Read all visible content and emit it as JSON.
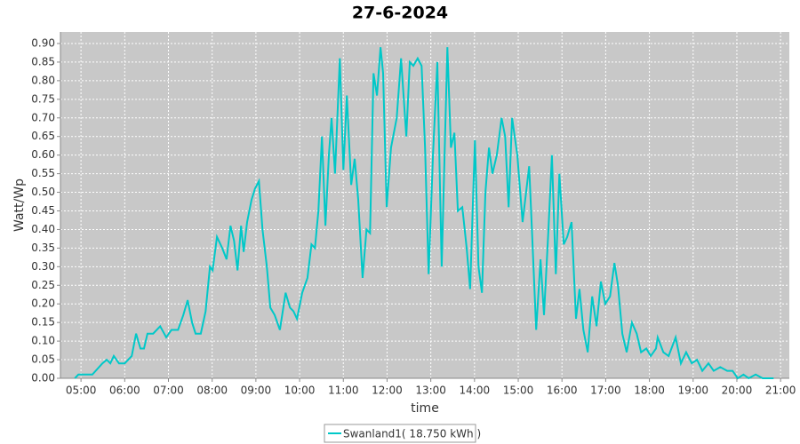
{
  "chart_data": {
    "type": "line",
    "title": "27-6-2024",
    "xlabel": "time",
    "ylabel": "Watt/Wp",
    "xlim": [
      4.53,
      21.2
    ],
    "ylim": [
      0,
      0.931
    ],
    "xticks": [
      {
        "value": 5,
        "label": "05:00"
      },
      {
        "value": 6,
        "label": "06:00"
      },
      {
        "value": 7,
        "label": "07:00"
      },
      {
        "value": 8,
        "label": "08:00"
      },
      {
        "value": 9,
        "label": "09:00"
      },
      {
        "value": 10,
        "label": "10:00"
      },
      {
        "value": 11,
        "label": "11:00"
      },
      {
        "value": 12,
        "label": "12:00"
      },
      {
        "value": 13,
        "label": "13:00"
      },
      {
        "value": 14,
        "label": "14:00"
      },
      {
        "value": 15,
        "label": "15:00"
      },
      {
        "value": 16,
        "label": "16:00"
      },
      {
        "value": 17,
        "label": "17:00"
      },
      {
        "value": 18,
        "label": "18:00"
      },
      {
        "value": 19,
        "label": "19:00"
      },
      {
        "value": 20,
        "label": "20:00"
      },
      {
        "value": 21,
        "label": "21:00"
      }
    ],
    "yticks": [
      {
        "value": 0,
        "label": "0.00"
      },
      {
        "value": 0.05,
        "label": "0.05"
      },
      {
        "value": 0.1,
        "label": "0.10"
      },
      {
        "value": 0.15,
        "label": "0.15"
      },
      {
        "value": 0.2,
        "label": "0.20"
      },
      {
        "value": 0.25,
        "label": "0.25"
      },
      {
        "value": 0.3,
        "label": "0.30"
      },
      {
        "value": 0.35,
        "label": "0.35"
      },
      {
        "value": 0.4,
        "label": "0.40"
      },
      {
        "value": 0.45,
        "label": "0.45"
      },
      {
        "value": 0.5,
        "label": "0.50"
      },
      {
        "value": 0.55,
        "label": "0.55"
      },
      {
        "value": 0.6,
        "label": "0.60"
      },
      {
        "value": 0.65,
        "label": "0.65"
      },
      {
        "value": 0.7,
        "label": "0.70"
      },
      {
        "value": 0.75,
        "label": "0.75"
      },
      {
        "value": 0.8,
        "label": "0.80"
      },
      {
        "value": 0.85,
        "label": "0.85"
      },
      {
        "value": 0.9,
        "label": "0.90"
      }
    ],
    "grid": true,
    "legend": "bottom",
    "x": [
      4.86,
      4.94,
      5.26,
      5.49,
      5.59,
      5.67,
      5.75,
      5.87,
      6.0,
      6.16,
      6.26,
      6.36,
      6.44,
      6.52,
      6.65,
      6.81,
      6.95,
      7.07,
      7.22,
      7.34,
      7.44,
      7.54,
      7.62,
      7.74,
      7.85,
      7.95,
      8.01,
      8.11,
      8.23,
      8.33,
      8.42,
      8.5,
      8.58,
      8.66,
      8.72,
      8.8,
      8.9,
      8.98,
      9.07,
      9.15,
      9.25,
      9.33,
      9.43,
      9.55,
      9.68,
      9.78,
      9.86,
      9.94,
      10.06,
      10.18,
      10.27,
      10.35,
      10.43,
      10.51,
      10.59,
      10.67,
      10.73,
      10.81,
      10.92,
      11.0,
      11.08,
      11.18,
      11.26,
      11.34,
      11.44,
      11.53,
      11.61,
      11.69,
      11.77,
      11.85,
      11.91,
      11.99,
      12.09,
      12.22,
      12.32,
      12.44,
      12.52,
      12.6,
      12.7,
      12.79,
      12.87,
      12.95,
      13.05,
      13.15,
      13.25,
      13.38,
      13.46,
      13.54,
      13.62,
      13.72,
      13.82,
      13.9,
      14.01,
      14.09,
      14.17,
      14.25,
      14.33,
      14.41,
      14.51,
      14.62,
      14.7,
      14.78,
      14.86,
      14.98,
      15.1,
      15.25,
      15.33,
      15.41,
      15.51,
      15.59,
      15.69,
      15.77,
      15.86,
      15.94,
      16.04,
      16.12,
      16.22,
      16.32,
      16.4,
      16.49,
      16.59,
      16.69,
      16.79,
      16.89,
      16.99,
      17.1,
      17.2,
      17.28,
      17.38,
      17.48,
      17.6,
      17.71,
      17.81,
      17.93,
      18.03,
      18.15,
      18.19,
      18.32,
      18.44,
      18.6,
      18.72,
      18.84,
      18.97,
      19.09,
      19.21,
      19.35,
      19.47,
      19.62,
      19.78,
      19.9,
      20.02,
      20.15,
      20.27,
      20.43,
      20.59,
      20.84
    ],
    "series": [
      {
        "name": "Swanland1( 18.750 kWh )",
        "color": "#00c8c8",
        "values": [
          0,
          0.01,
          0.01,
          0.04,
          0.05,
          0.04,
          0.06,
          0.04,
          0.04,
          0.06,
          0.12,
          0.08,
          0.08,
          0.12,
          0.12,
          0.14,
          0.11,
          0.13,
          0.13,
          0.17,
          0.21,
          0.15,
          0.12,
          0.12,
          0.18,
          0.3,
          0.29,
          0.38,
          0.35,
          0.32,
          0.41,
          0.37,
          0.29,
          0.41,
          0.34,
          0.42,
          0.48,
          0.51,
          0.53,
          0.4,
          0.3,
          0.19,
          0.17,
          0.13,
          0.23,
          0.19,
          0.18,
          0.16,
          0.23,
          0.27,
          0.36,
          0.35,
          0.45,
          0.65,
          0.41,
          0.6,
          0.7,
          0.55,
          0.86,
          0.56,
          0.76,
          0.52,
          0.59,
          0.48,
          0.27,
          0.4,
          0.39,
          0.82,
          0.76,
          0.89,
          0.82,
          0.46,
          0.62,
          0.7,
          0.86,
          0.65,
          0.85,
          0.84,
          0.86,
          0.84,
          0.62,
          0.28,
          0.6,
          0.85,
          0.3,
          0.89,
          0.62,
          0.66,
          0.45,
          0.46,
          0.35,
          0.24,
          0.64,
          0.3,
          0.23,
          0.5,
          0.62,
          0.55,
          0.6,
          0.7,
          0.65,
          0.46,
          0.7,
          0.6,
          0.42,
          0.57,
          0.35,
          0.13,
          0.32,
          0.17,
          0.4,
          0.6,
          0.28,
          0.55,
          0.36,
          0.38,
          0.42,
          0.16,
          0.24,
          0.13,
          0.07,
          0.22,
          0.14,
          0.26,
          0.2,
          0.22,
          0.31,
          0.25,
          0.12,
          0.07,
          0.15,
          0.12,
          0.07,
          0.08,
          0.06,
          0.08,
          0.11,
          0.07,
          0.06,
          0.11,
          0.04,
          0.07,
          0.04,
          0.05,
          0.02,
          0.04,
          0.02,
          0.03,
          0.02,
          0.02,
          0,
          0.01,
          0,
          0.01,
          0,
          0
        ]
      }
    ]
  }
}
